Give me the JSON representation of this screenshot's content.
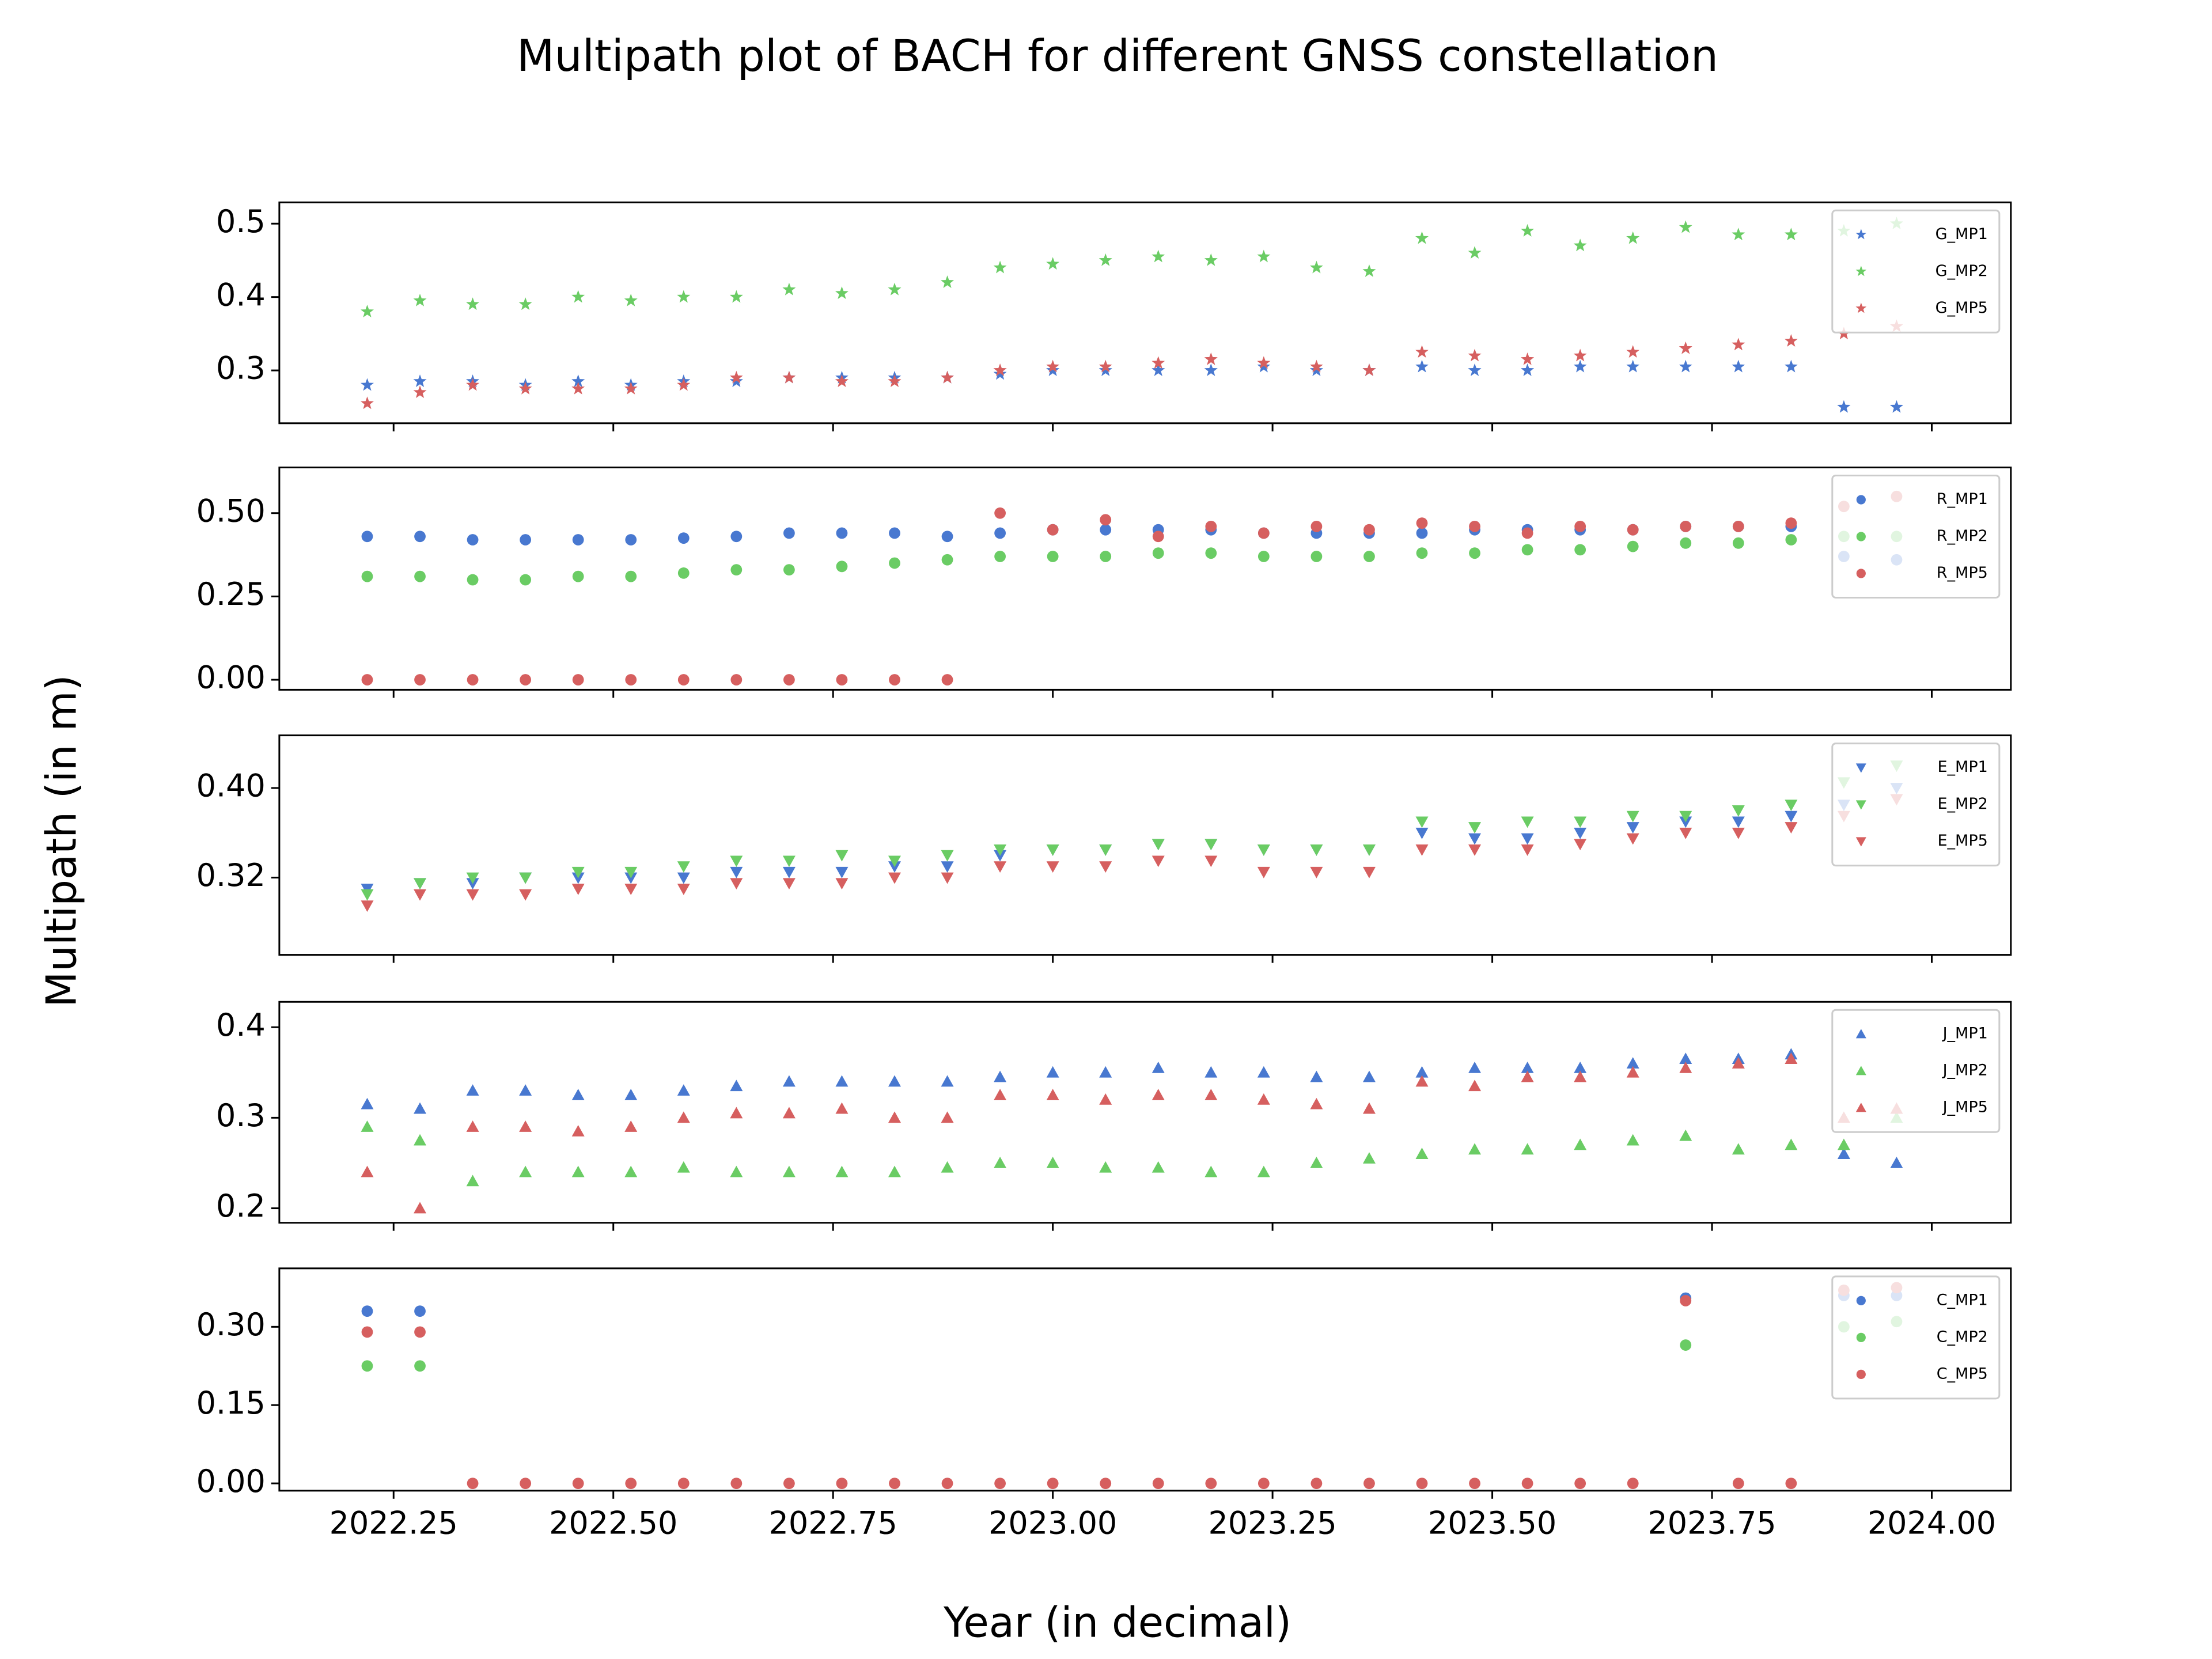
{
  "title": "Multipath plot of BACH for different GNSS constellation",
  "xlabel": "Year (in decimal)",
  "ylabel": "Multipath (in m)",
  "chart_data": [
    {
      "type": "scatter",
      "marker": "*",
      "legend": "upper right",
      "x": [
        2022.22,
        2022.28,
        2022.34,
        2022.4,
        2022.46,
        2022.52,
        2022.58,
        2022.64,
        2022.7,
        2022.76,
        2022.82,
        2022.88,
        2022.94,
        2023.0,
        2023.06,
        2023.12,
        2023.18,
        2023.24,
        2023.3,
        2023.36,
        2023.42,
        2023.48,
        2023.54,
        2023.6,
        2023.66,
        2023.72,
        2023.78,
        2023.84,
        2023.9,
        2023.96
      ],
      "xlim": [
        2022.12,
        2024.09
      ],
      "xticks": [
        2022.25,
        2022.5,
        2022.75,
        2023,
        2023.25,
        2023.5,
        2023.75,
        2024
      ],
      "ylim": [
        0.228,
        0.529
      ],
      "yticks": [
        0.3,
        0.4,
        0.5
      ],
      "series": [
        {
          "name": "G_MP1",
          "color": "#4878d0",
          "values": [
            0.28,
            0.285,
            0.285,
            0.28,
            0.285,
            0.28,
            0.285,
            0.285,
            0.29,
            0.29,
            0.29,
            0.29,
            0.295,
            0.3,
            0.3,
            0.3,
            0.3,
            0.305,
            0.3,
            0.3,
            0.305,
            0.3,
            0.3,
            0.305,
            0.305,
            0.305,
            0.305,
            0.305,
            0.25,
            0.25
          ]
        },
        {
          "name": "G_MP2",
          "color": "#6acc64",
          "values": [
            0.38,
            0.395,
            0.39,
            0.39,
            0.4,
            0.395,
            0.4,
            0.4,
            0.41,
            0.405,
            0.41,
            0.42,
            0.44,
            0.445,
            0.45,
            0.455,
            0.45,
            0.455,
            0.44,
            0.435,
            0.48,
            0.46,
            0.49,
            0.47,
            0.48,
            0.495,
            0.485,
            0.485,
            0.49,
            0.5
          ]
        },
        {
          "name": "G_MP5",
          "color": "#d65f5f",
          "values": [
            0.255,
            0.27,
            0.28,
            0.275,
            0.275,
            0.275,
            0.28,
            0.29,
            0.29,
            0.285,
            0.285,
            0.29,
            0.3,
            0.305,
            0.305,
            0.31,
            0.315,
            0.31,
            0.305,
            0.3,
            0.325,
            0.32,
            0.315,
            0.32,
            0.325,
            0.33,
            0.335,
            0.34,
            0.35,
            0.36
          ]
        }
      ]
    },
    {
      "type": "scatter",
      "marker": "o",
      "legend": "upper right",
      "x": [
        2022.22,
        2022.28,
        2022.34,
        2022.4,
        2022.46,
        2022.52,
        2022.58,
        2022.64,
        2022.7,
        2022.76,
        2022.82,
        2022.88,
        2022.94,
        2023.0,
        2023.06,
        2023.12,
        2023.18,
        2023.24,
        2023.3,
        2023.36,
        2023.42,
        2023.48,
        2023.54,
        2023.6,
        2023.66,
        2023.72,
        2023.78,
        2023.84,
        2023.9,
        2023.96
      ],
      "xlim": [
        2022.12,
        2024.09
      ],
      "xticks": [
        2022.25,
        2022.5,
        2022.75,
        2023,
        2023.25,
        2023.5,
        2023.75,
        2024
      ],
      "ylim": [
        -0.03,
        0.637
      ],
      "yticks": [
        {
          "value": 0,
          "label": "0.00"
        },
        {
          "value": 0.25,
          "label": "0.25"
        },
        {
          "value": 0.5,
          "label": "0.50"
        }
      ],
      "series": [
        {
          "name": "R_MP1",
          "color": "#4878d0",
          "values": [
            0.43,
            0.43,
            0.42,
            0.42,
            0.42,
            0.42,
            0.425,
            0.43,
            0.44,
            0.44,
            0.44,
            0.43,
            0.44,
            0.45,
            0.45,
            0.45,
            0.45,
            0.44,
            0.44,
            0.44,
            0.44,
            0.45,
            0.45,
            0.45,
            0.45,
            0.46,
            0.46,
            0.46,
            0.37,
            0.36
          ]
        },
        {
          "name": "R_MP2",
          "color": "#6acc64",
          "values": [
            0.31,
            0.31,
            0.3,
            0.3,
            0.31,
            0.31,
            0.32,
            0.33,
            0.33,
            0.34,
            0.35,
            0.36,
            0.37,
            0.37,
            0.37,
            0.38,
            0.38,
            0.37,
            0.37,
            0.37,
            0.38,
            0.38,
            0.39,
            0.39,
            0.4,
            0.41,
            0.41,
            0.42,
            0.43,
            0.43
          ]
        },
        {
          "name": "R_MP5",
          "color": "#d65f5f",
          "values": [
            0,
            0,
            0,
            0,
            0,
            0,
            0,
            0,
            0,
            0,
            0,
            0,
            0.5,
            0.45,
            0.48,
            0.43,
            0.46,
            0.44,
            0.46,
            0.45,
            0.47,
            0.46,
            0.44,
            0.46,
            0.45,
            0.46,
            0.46,
            0.47,
            0.52,
            0.55
          ]
        }
      ]
    },
    {
      "type": "scatter",
      "marker": "v",
      "legend": "upper right",
      "x": [
        2022.22,
        2022.28,
        2022.34,
        2022.4,
        2022.46,
        2022.52,
        2022.58,
        2022.64,
        2022.7,
        2022.76,
        2022.82,
        2022.88,
        2022.94,
        2023.0,
        2023.06,
        2023.12,
        2023.18,
        2023.24,
        2023.3,
        2023.36,
        2023.42,
        2023.48,
        2023.54,
        2023.6,
        2023.66,
        2023.72,
        2023.78,
        2023.84,
        2023.9,
        2023.96
      ],
      "xlim": [
        2022.12,
        2024.09
      ],
      "xticks": [
        2022.25,
        2022.5,
        2022.75,
        2023,
        2023.25,
        2023.5,
        2023.75,
        2024
      ],
      "ylim": [
        0.251,
        0.447
      ],
      "yticks": [
        0.32,
        {
          "value": 0.4,
          "label": "0.40"
        }
      ],
      "series": [
        {
          "name": "E_MP1",
          "color": "#4878d0",
          "values": [
            0.31,
            0.315,
            0.315,
            0.32,
            0.32,
            0.32,
            0.32,
            0.325,
            0.325,
            0.325,
            0.33,
            0.33,
            0.34,
            0.345,
            0.345,
            0.35,
            0.35,
            0.345,
            0.345,
            0.345,
            0.36,
            0.355,
            0.355,
            0.36,
            0.365,
            0.37,
            0.37,
            0.375,
            0.385,
            0.4
          ]
        },
        {
          "name": "E_MP2",
          "color": "#6acc64",
          "values": [
            0.305,
            0.315,
            0.32,
            0.32,
            0.325,
            0.325,
            0.33,
            0.335,
            0.335,
            0.34,
            0.335,
            0.34,
            0.345,
            0.345,
            0.345,
            0.35,
            0.35,
            0.345,
            0.345,
            0.345,
            0.37,
            0.365,
            0.37,
            0.37,
            0.375,
            0.375,
            0.38,
            0.385,
            0.405,
            0.42
          ]
        },
        {
          "name": "E_MP5",
          "color": "#d65f5f",
          "values": [
            0.295,
            0.305,
            0.305,
            0.305,
            0.31,
            0.31,
            0.31,
            0.315,
            0.315,
            0.315,
            0.32,
            0.32,
            0.33,
            0.33,
            0.33,
            0.335,
            0.335,
            0.325,
            0.325,
            0.325,
            0.345,
            0.345,
            0.345,
            0.35,
            0.355,
            0.36,
            0.36,
            0.365,
            0.375,
            0.39
          ]
        }
      ]
    },
    {
      "type": "scatter",
      "marker": "^",
      "legend": "upper right",
      "x": [
        2022.22,
        2022.28,
        2022.34,
        2022.4,
        2022.46,
        2022.52,
        2022.58,
        2022.64,
        2022.7,
        2022.76,
        2022.82,
        2022.88,
        2022.94,
        2023.0,
        2023.06,
        2023.12,
        2023.18,
        2023.24,
        2023.3,
        2023.36,
        2023.42,
        2023.48,
        2023.54,
        2023.6,
        2023.66,
        2023.72,
        2023.78,
        2023.84,
        2023.9,
        2023.96
      ],
      "xlim": [
        2022.12,
        2024.09
      ],
      "xticks": [
        2022.25,
        2022.5,
        2022.75,
        2023,
        2023.25,
        2023.5,
        2023.75,
        2024
      ],
      "ylim": [
        0.184,
        0.428
      ],
      "yticks": [
        0.2,
        0.3,
        0.4
      ],
      "series": [
        {
          "name": "J_MP1",
          "color": "#4878d0",
          "values": [
            0.315,
            0.31,
            0.33,
            0.33,
            0.325,
            0.325,
            0.33,
            0.335,
            0.34,
            0.34,
            0.34,
            0.34,
            0.345,
            0.35,
            0.35,
            0.355,
            0.35,
            0.35,
            0.345,
            0.345,
            0.35,
            0.355,
            0.355,
            0.355,
            0.36,
            0.365,
            0.365,
            0.37,
            0.26,
            0.25
          ]
        },
        {
          "name": "J_MP2",
          "color": "#6acc64",
          "values": [
            0.29,
            0.275,
            0.23,
            0.24,
            0.24,
            0.24,
            0.245,
            0.24,
            0.24,
            0.24,
            0.24,
            0.245,
            0.25,
            0.25,
            0.245,
            0.245,
            0.24,
            0.24,
            0.25,
            0.255,
            0.26,
            0.265,
            0.265,
            0.27,
            0.275,
            0.28,
            0.265,
            0.27,
            0.27,
            0.3
          ]
        },
        {
          "name": "J_MP5",
          "color": "#d65f5f",
          "values": [
            0.24,
            0.2,
            0.29,
            0.29,
            0.285,
            0.29,
            0.3,
            0.305,
            0.305,
            0.31,
            0.3,
            0.3,
            0.325,
            0.325,
            0.32,
            0.325,
            0.325,
            0.32,
            0.315,
            0.31,
            0.34,
            0.335,
            0.345,
            0.345,
            0.35,
            0.355,
            0.36,
            0.365,
            0.3,
            0.31
          ]
        }
      ]
    },
    {
      "type": "scatter",
      "marker": "o",
      "legend": "upper right",
      "x": [
        2022.22,
        2022.28,
        2022.34,
        2022.4,
        2022.46,
        2022.52,
        2022.58,
        2022.64,
        2022.7,
        2022.76,
        2022.82,
        2022.88,
        2022.94,
        2023.0,
        2023.06,
        2023.12,
        2023.18,
        2023.24,
        2023.3,
        2023.36,
        2023.42,
        2023.48,
        2023.54,
        2023.6,
        2023.66,
        2023.72,
        2023.78,
        2023.84,
        2023.9,
        2023.96
      ],
      "xlim": [
        2022.12,
        2024.09
      ],
      "xticks": [
        2022.25,
        {
          "value": 2022.5,
          "label": "2022.50"
        },
        2022.75,
        {
          "value": 2023,
          "label": "2023.00"
        },
        2023.25,
        {
          "value": 2023.5,
          "label": "2023.50"
        },
        2023.75,
        {
          "value": 2024,
          "label": "2024.00"
        }
      ],
      "ylim": [
        -0.014,
        0.412
      ],
      "yticks": [
        {
          "value": 0,
          "label": "0.00"
        },
        0.15,
        {
          "value": 0.3,
          "label": "0.30"
        }
      ],
      "series": [
        {
          "name": "C_MP1",
          "color": "#4878d0",
          "values": [
            0.33,
            0.33,
            null,
            null,
            null,
            null,
            null,
            null,
            null,
            null,
            null,
            null,
            null,
            null,
            null,
            null,
            null,
            null,
            null,
            null,
            null,
            null,
            null,
            null,
            null,
            0.355,
            null,
            null,
            0.36,
            0.36
          ]
        },
        {
          "name": "C_MP2",
          "color": "#6acc64",
          "values": [
            0.225,
            0.225,
            null,
            null,
            null,
            null,
            null,
            null,
            null,
            null,
            null,
            null,
            null,
            null,
            null,
            null,
            null,
            null,
            null,
            null,
            null,
            null,
            null,
            null,
            null,
            0.265,
            null,
            null,
            0.3,
            0.31
          ]
        },
        {
          "name": "C_MP5",
          "color": "#d65f5f",
          "values": [
            0.29,
            0.29,
            0,
            0,
            0,
            0,
            0,
            0,
            0,
            0,
            0,
            0,
            0,
            0,
            0,
            0,
            0,
            0,
            0,
            0,
            0,
            0,
            0,
            0,
            0,
            0.35,
            0,
            0,
            0.37,
            0.375
          ]
        }
      ]
    }
  ]
}
